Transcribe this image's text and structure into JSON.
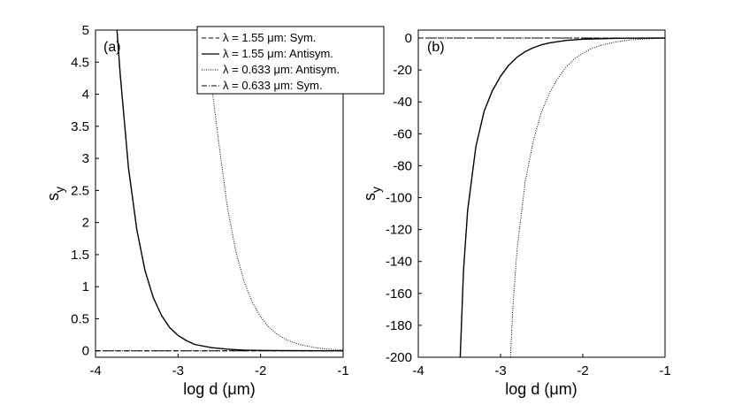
{
  "chart_data": [
    {
      "type": "line",
      "panel_label": "(a)",
      "xlabel": "log d (μm)",
      "ylabel": "s",
      "ylabel_subscript": "y",
      "xlim": [
        -4,
        -1
      ],
      "ylim": [
        -0.1,
        5
      ],
      "xticks": [
        "-4",
        "-3",
        "-2",
        "-1"
      ],
      "yticks": [
        "0",
        "0.5",
        "1",
        "1.5",
        "2",
        "2.5",
        "3",
        "3.5",
        "4",
        "4.5",
        "5"
      ],
      "legend": {
        "placement": "top-right",
        "entries": [
          {
            "label": "λ = 1.55 μm: Sym.",
            "style": "dashed"
          },
          {
            "label": "λ = 1.55 μm: Antisym.",
            "style": "solid"
          },
          {
            "label": "λ = 0.633 μm: Antisym.",
            "style": "dotted"
          },
          {
            "label": "λ = 0.633 μm: Sym.",
            "style": "dashdot"
          }
        ]
      },
      "series": [
        {
          "name": "λ = 1.55 μm: Sym.",
          "style": "dashed",
          "x": [
            -4,
            -1
          ],
          "y": [
            0,
            0
          ]
        },
        {
          "name": "λ = 1.55 μm: Antisym.",
          "style": "solid",
          "x": [
            -3.74,
            -3.7,
            -3.6,
            -3.5,
            -3.4,
            -3.3,
            -3.2,
            -3.1,
            -3.0,
            -2.9,
            -2.8,
            -2.6,
            -2.4,
            -2.2,
            -2.0,
            -1.5,
            -1.0
          ],
          "y": [
            5.0,
            4.3,
            2.85,
            1.89,
            1.25,
            0.83,
            0.55,
            0.36,
            0.24,
            0.16,
            0.1,
            0.05,
            0.025,
            0.012,
            0.006,
            0.002,
            0.0
          ]
        },
        {
          "name": "λ = 0.633 μm: Antisym.",
          "style": "dotted",
          "x": [
            -2.6,
            -2.5,
            -2.4,
            -2.3,
            -2.2,
            -2.1,
            -2.0,
            -1.9,
            -1.8,
            -1.7,
            -1.6,
            -1.5,
            -1.3,
            -1.0
          ],
          "y": [
            4.2,
            3.18,
            2.22,
            1.55,
            1.08,
            0.76,
            0.53,
            0.37,
            0.26,
            0.18,
            0.13,
            0.09,
            0.04,
            0.01
          ]
        },
        {
          "name": "λ = 0.633 μm: Sym.",
          "style": "dashdot",
          "x": [
            -4,
            -1
          ],
          "y": [
            0,
            0
          ]
        }
      ]
    },
    {
      "type": "line",
      "panel_label": "(b)",
      "xlabel": "log d (μm)",
      "ylabel": "s",
      "ylabel_subscript": "y",
      "xlim": [
        -4,
        -1
      ],
      "ylim": [
        -200,
        5
      ],
      "xticks": [
        "-4",
        "-3",
        "-2",
        "-1"
      ],
      "yticks": [
        "-200",
        "-180",
        "-160",
        "-140",
        "-120",
        "-100",
        "-80",
        "-60",
        "-40",
        "-20",
        "0"
      ],
      "series": [
        {
          "name": "λ = 1.55 μm: Sym.",
          "style": "dashed",
          "x": [
            -4,
            -1
          ],
          "y": [
            0,
            0
          ]
        },
        {
          "name": "λ = 1.55 μm: Antisym.",
          "style": "solid",
          "x": [
            -3.49,
            -3.45,
            -3.4,
            -3.3,
            -3.2,
            -3.1,
            -3.0,
            -2.9,
            -2.8,
            -2.7,
            -2.6,
            -2.5,
            -2.4,
            -2.2,
            -2.0,
            -1.5,
            -1.0
          ],
          "y": [
            -200,
            -146,
            -108,
            -68,
            -46,
            -33,
            -24,
            -17,
            -12,
            -8.5,
            -6,
            -4.2,
            -3,
            -1.5,
            -0.7,
            -0.1,
            0
          ]
        },
        {
          "name": "λ = 0.633 μm: Antisym.",
          "style": "dotted",
          "x": [
            -2.88,
            -2.85,
            -2.8,
            -2.7,
            -2.6,
            -2.5,
            -2.4,
            -2.3,
            -2.2,
            -2.1,
            -2.0,
            -1.9,
            -1.8,
            -1.6,
            -1.4,
            -1.0
          ],
          "y": [
            -200,
            -168,
            -133,
            -90,
            -64,
            -46,
            -34,
            -25,
            -18,
            -13,
            -9.5,
            -6.8,
            -4.8,
            -2.4,
            -1.0,
            0
          ]
        },
        {
          "name": "λ = 0.633 μm: Sym.",
          "style": "dashdot",
          "x": [
            -4,
            -1
          ],
          "y": [
            0,
            0
          ]
        }
      ]
    }
  ]
}
